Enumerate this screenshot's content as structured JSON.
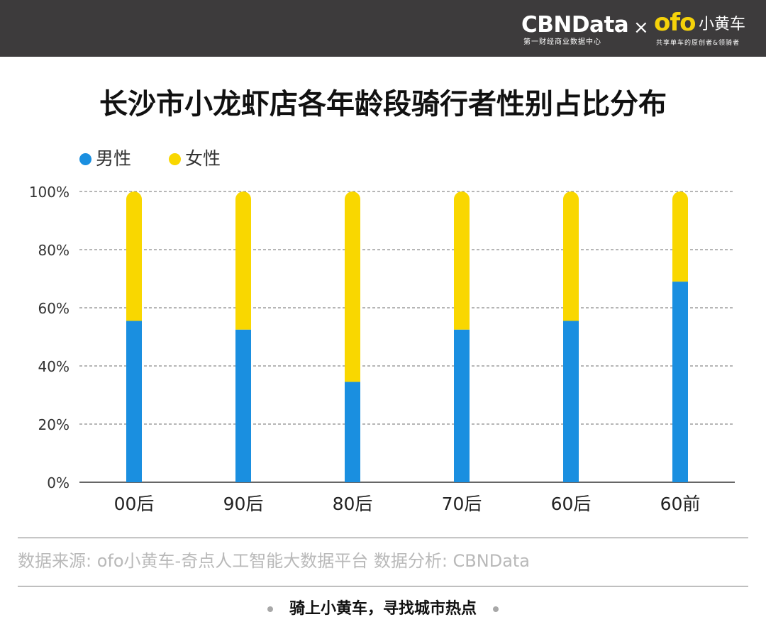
{
  "header": {
    "cbn_logo": "CBNData",
    "cbn_tagline": "第一财经商业数据中心",
    "separator": "×",
    "ofo_logo": "ofo",
    "ofo_name": "小黄车",
    "ofo_tagline": "共享单车的原创者&领骑者",
    "background": "#3d3b3c",
    "ofo_color": "#f5d20a"
  },
  "footer": {
    "source": "数据来源: ofo小黄车-奇点人工智能大数据平台    数据分析: CBNData",
    "slogan": "骑上小黄车，寻找城市热点"
  },
  "chart_data": {
    "type": "bar",
    "stacked": true,
    "title": "长沙市小龙虾店各年龄段骑行者性别占比分布",
    "xlabel": "",
    "ylabel": "",
    "categories": [
      "00后",
      "90后",
      "80后",
      "70后",
      "60后",
      "60前"
    ],
    "series": [
      {
        "name": "男性",
        "color": "#1a8fe0",
        "values": [
          55.5,
          52.5,
          34.5,
          52.5,
          55.5,
          69
        ]
      },
      {
        "name": "女性",
        "color": "#f9d700",
        "values": [
          44.5,
          47.5,
          65.5,
          47.5,
          44.5,
          31
        ]
      }
    ],
    "ylim": [
      0,
      100
    ],
    "yticks": [
      "0%",
      "20%",
      "40%",
      "60%",
      "80%",
      "100%"
    ],
    "grid": true,
    "legend_position": "top-left"
  }
}
